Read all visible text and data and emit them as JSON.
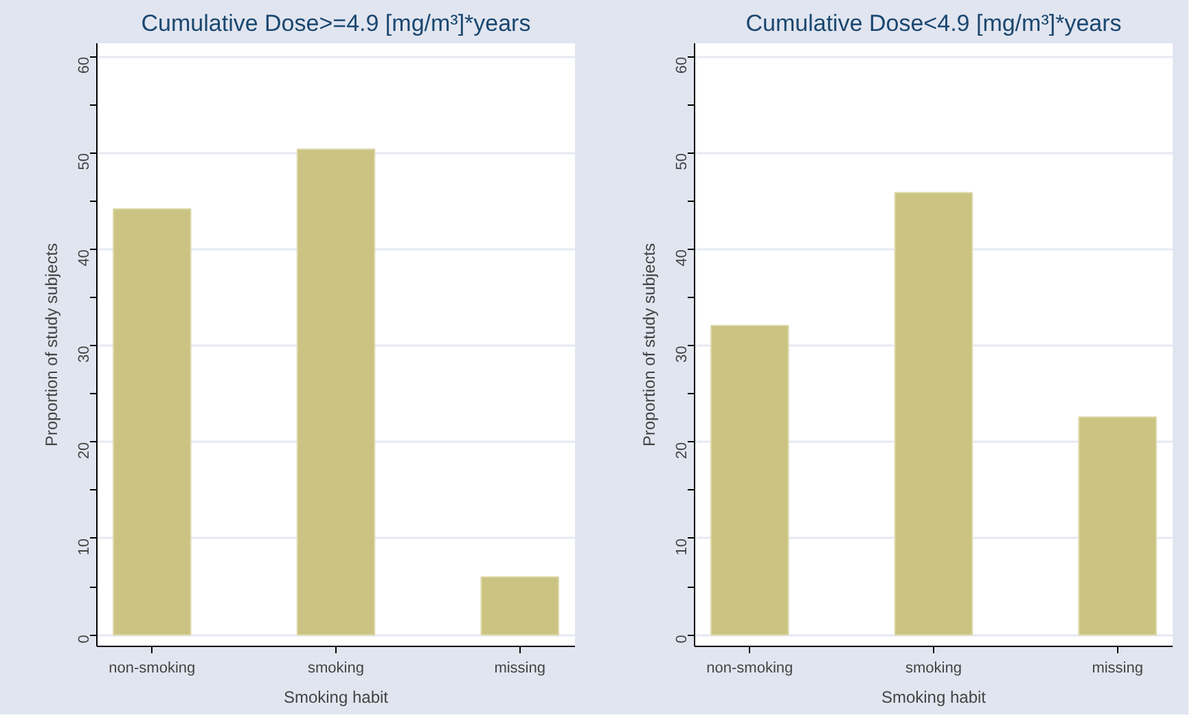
{
  "chart_data": [
    {
      "type": "bar",
      "title": "Cumulative Dose>=4.9 [mg/m³]*years",
      "xlabel": "Smoking habit",
      "ylabel": "Proportion of study subjects",
      "categories": [
        "non-smoking",
        "smoking",
        "missing"
      ],
      "values": [
        44.2,
        50.4,
        6.0
      ],
      "color": "#cbc382",
      "ylim": [
        -1.2,
        61.4
      ],
      "yticks": [
        0,
        {
          "value": 5,
          "label": null
        },
        10,
        {
          "value": 15,
          "label": null
        },
        20,
        {
          "value": 25,
          "label": null
        },
        30,
        {
          "value": 35,
          "label": null
        },
        40,
        {
          "value": 45,
          "label": null
        },
        50,
        {
          "value": 55,
          "label": null
        },
        60
      ],
      "grid": "y"
    },
    {
      "type": "bar",
      "title": "Cumulative Dose<4.9 [mg/m³]*years",
      "xlabel": "Smoking habit",
      "ylabel": "Proportion of study subjects",
      "categories": [
        "non-smoking",
        "smoking",
        "missing"
      ],
      "values": [
        32.1,
        45.9,
        22.6
      ],
      "color": "#cbc382",
      "ylim": [
        -1.2,
        61.4
      ],
      "yticks": [
        0,
        {
          "value": 5,
          "label": null
        },
        10,
        {
          "value": 15,
          "label": null
        },
        20,
        {
          "value": 25,
          "label": null
        },
        30,
        {
          "value": 35,
          "label": null
        },
        40,
        {
          "value": 45,
          "label": null
        },
        50,
        {
          "value": 55,
          "label": null
        },
        60
      ],
      "grid": "y"
    }
  ]
}
